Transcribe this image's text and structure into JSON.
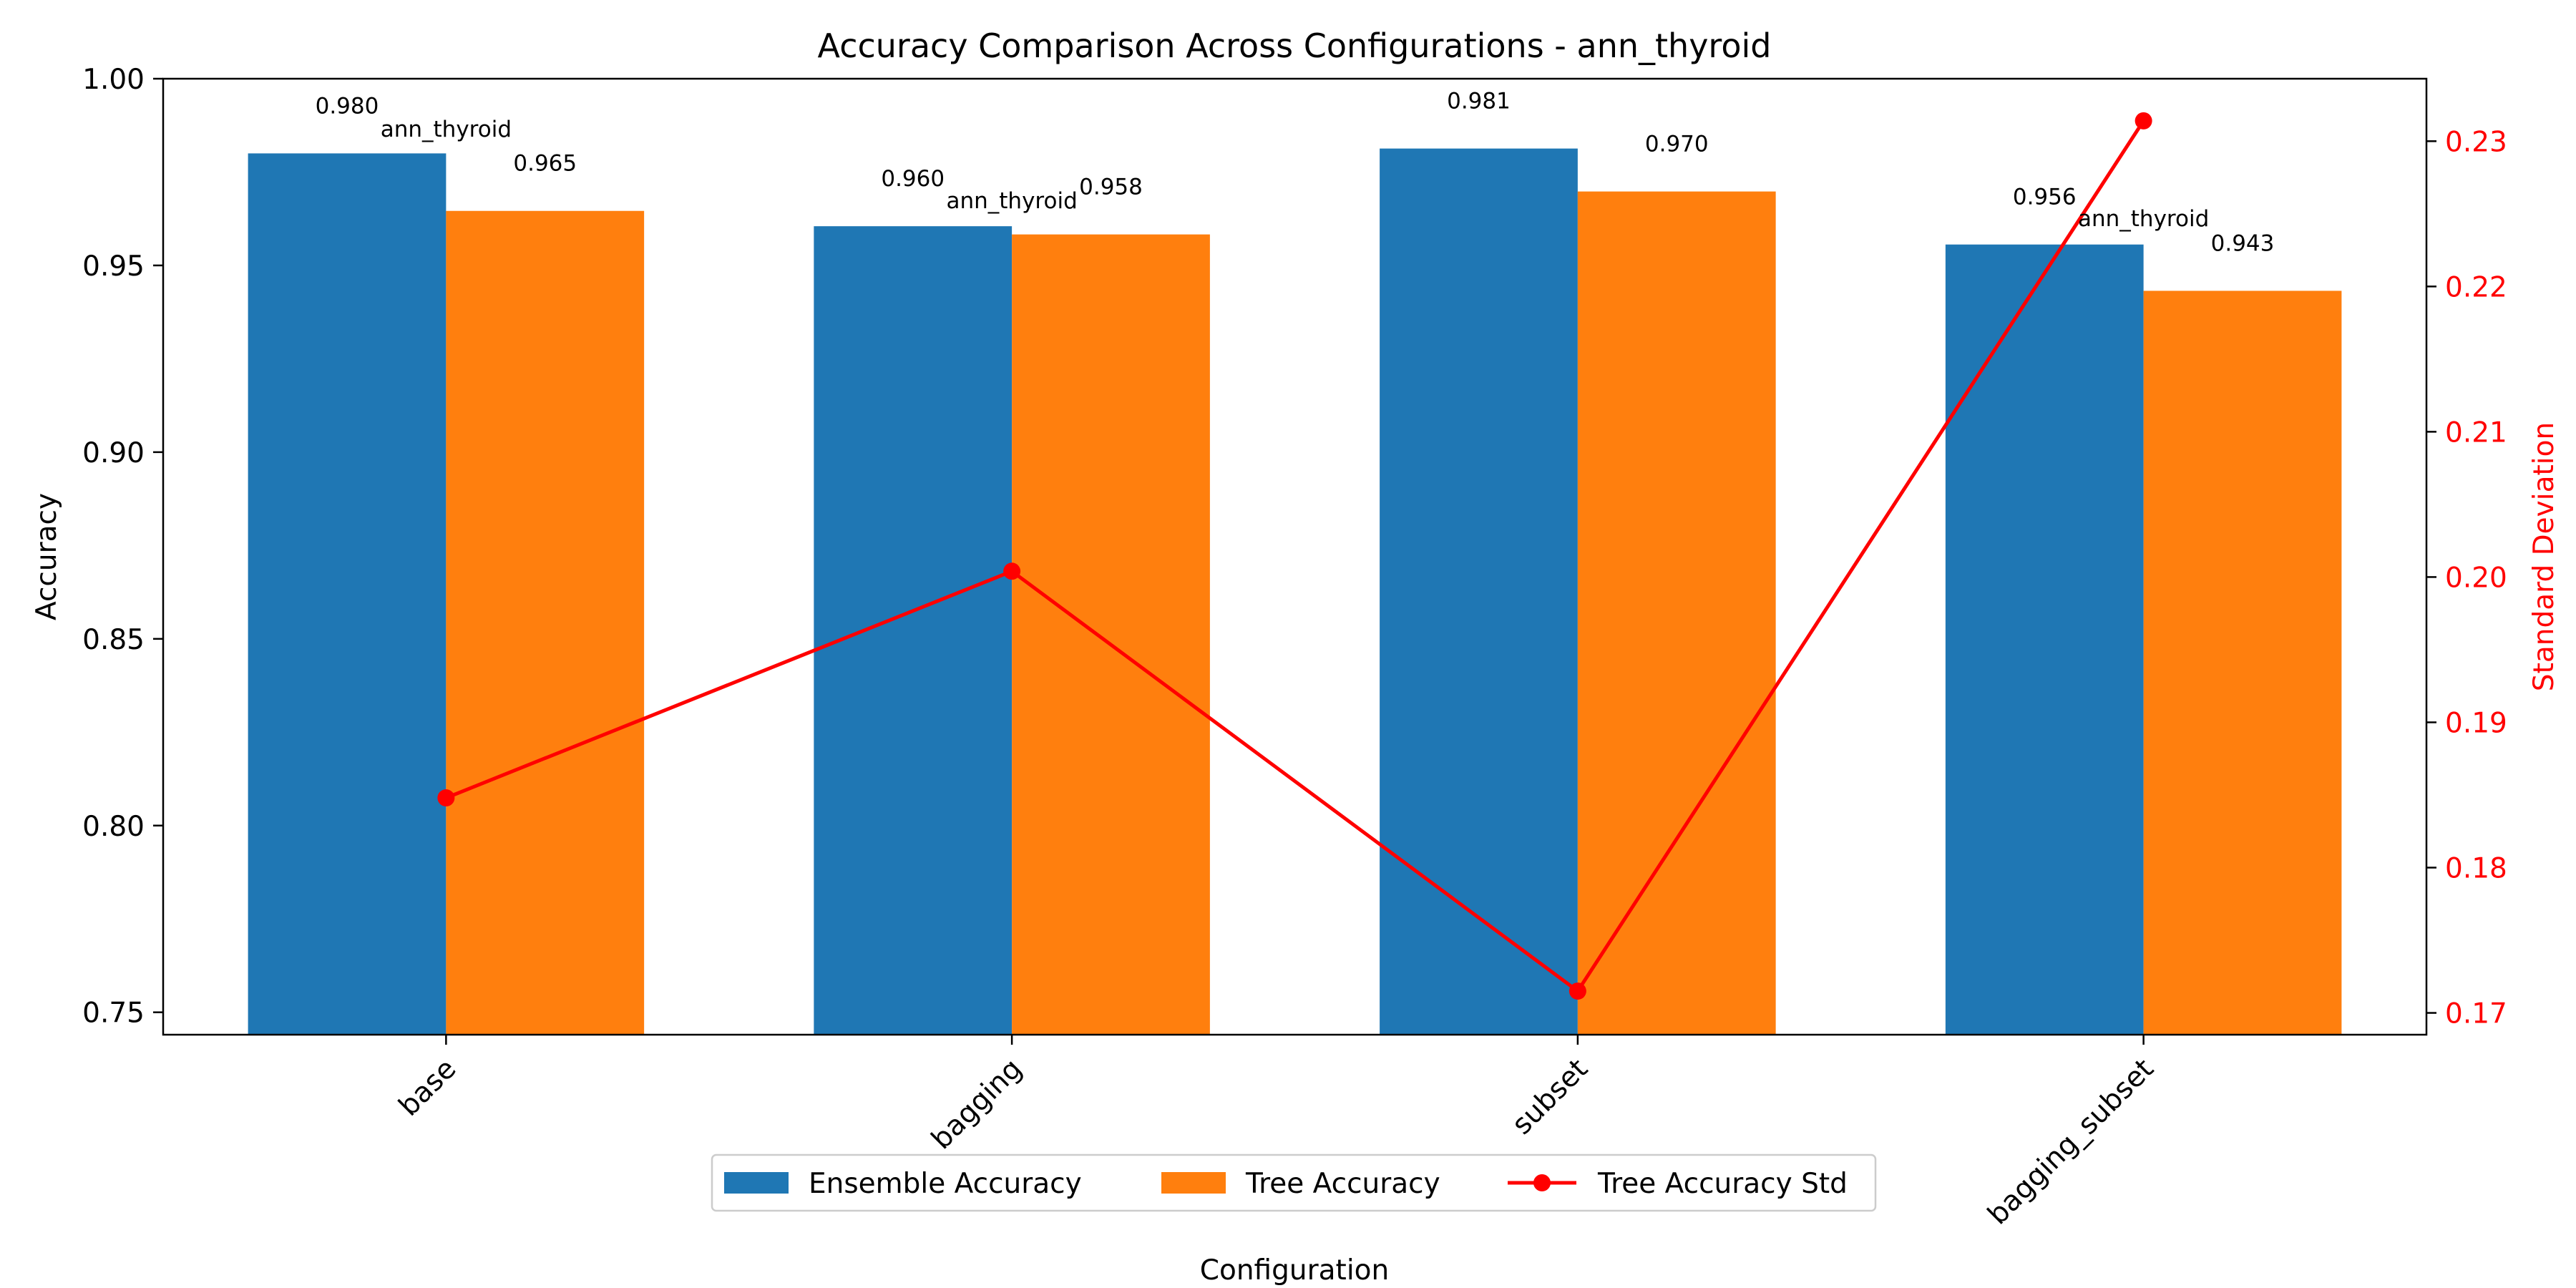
{
  "chart_data": {
    "type": "bar",
    "title": "Accuracy Comparison Across Configurations - ann_thyroid",
    "xlabel": "Configuration",
    "ylabel": "Accuracy",
    "y2label": "Standard Deviation",
    "categories": [
      "base",
      "bagging",
      "subset",
      "bagging_subset"
    ],
    "ylim": [
      0.744,
      1.0
    ],
    "yticks": [
      "0.75",
      "0.80",
      "0.85",
      "0.90",
      "0.95",
      "1.00"
    ],
    "y2lim": [
      0.1685,
      0.2343
    ],
    "y2ticks": [
      "0.17",
      "0.18",
      "0.19",
      "0.20",
      "0.21",
      "0.22",
      "0.23"
    ],
    "series": [
      {
        "name": "Ensemble Accuracy",
        "kind": "bar",
        "axis": "left",
        "color": "#1f77b4",
        "values": [
          0.98,
          0.9605,
          0.9813,
          0.9556
        ],
        "labels": [
          "0.980",
          "0.960",
          "0.981",
          "0.956"
        ]
      },
      {
        "name": "Tree Accuracy",
        "kind": "bar",
        "axis": "left",
        "color": "#ff7f0e",
        "values": [
          0.9646,
          0.9583,
          0.9698,
          0.9432
        ],
        "labels": [
          "0.965",
          "0.958",
          "0.970",
          "0.943"
        ]
      },
      {
        "name": "Tree Accuracy Std",
        "kind": "line",
        "axis": "right",
        "color": "#ff0000",
        "values": [
          0.1848,
          0.2004,
          0.1715,
          0.2314
        ]
      }
    ],
    "annotations": [
      {
        "text": "ann_thyroid",
        "category": 0,
        "y": 0.9845
      },
      {
        "text": "ann_thyroid",
        "category": 1,
        "y": 0.9653
      },
      {
        "text": "ann_thyroid",
        "category": 3,
        "y": 0.9605
      }
    ],
    "grid": false,
    "legend": "bottom-center"
  }
}
